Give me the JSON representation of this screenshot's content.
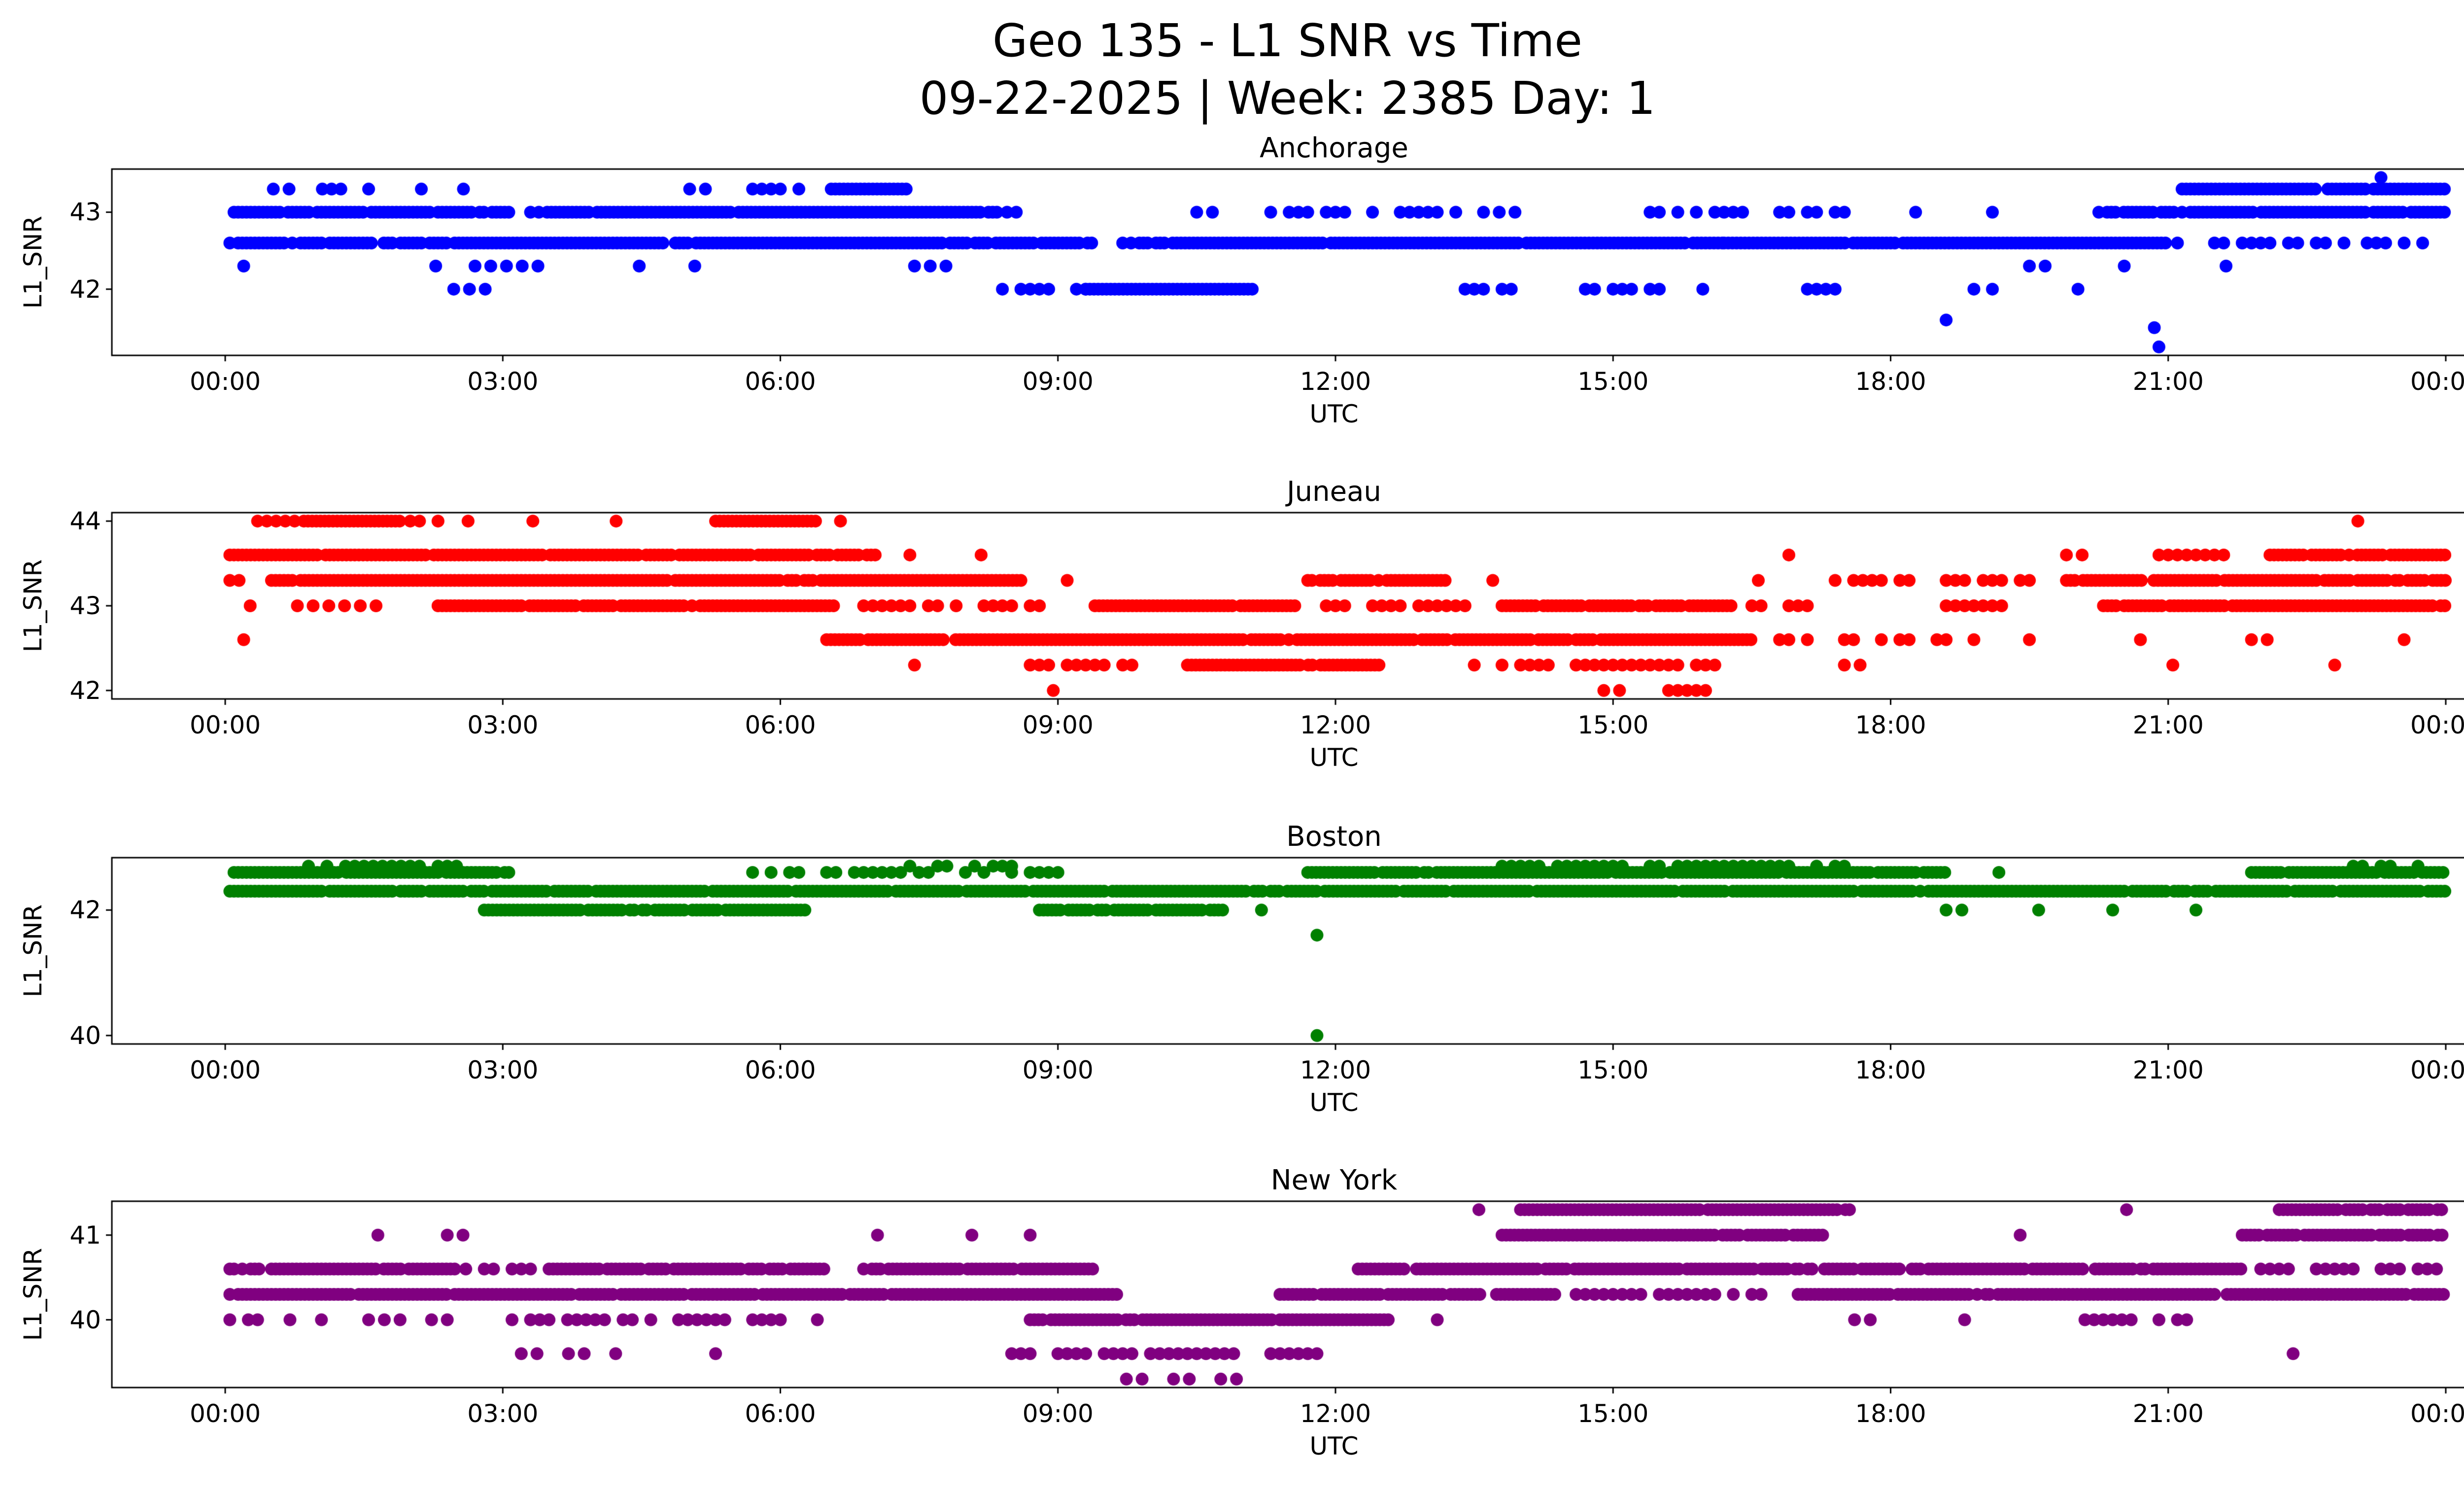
{
  "header": {
    "line1": "Geo 135 - L1 SNR vs Time",
    "line2": "09-22-2025 | Week: 2385 Day: 1"
  },
  "x_axis": {
    "label": "UTC",
    "range": [
      0,
      24
    ],
    "tick_times": [
      0,
      3,
      6,
      9,
      12,
      15,
      18,
      21,
      24
    ],
    "tick_labels": [
      "00:00",
      "03:00",
      "06:00",
      "09:00",
      "12:00",
      "15:00",
      "18:00",
      "21:00",
      "00:00"
    ]
  },
  "chart_data": [
    {
      "type": "scatter",
      "title": "Anchorage",
      "color": "#0000ff",
      "ylabel": "L1_SNR",
      "yticks": [
        42,
        43
      ],
      "bands": [
        {
          "snr": 43.45,
          "segments": [
            [
              23.3,
              23.3,
              "single"
            ]
          ]
        },
        {
          "snr": 43.3,
          "segments": [
            [
              0.35,
              0.95,
              "sparse"
            ],
            [
              1.05,
              1.65,
              "med"
            ],
            [
              1.95,
              2.15,
              "sparse"
            ],
            [
              2.5,
              2.65,
              "single"
            ],
            [
              4.85,
              5.35,
              "sparse"
            ],
            [
              5.6,
              6.35,
              "med"
            ],
            [
              6.55,
              7.4,
              "dense"
            ],
            [
              21.15,
              24,
              "dense"
            ]
          ]
        },
        {
          "snr": 43.0,
          "segments": [
            [
              0.05,
              3.1,
              "dense"
            ],
            [
              3.3,
              8.35,
              "dense"
            ],
            [
              8.45,
              8.75,
              "med"
            ],
            [
              10.5,
              10.95,
              "sparse"
            ],
            [
              11.3,
              12.4,
              "med"
            ],
            [
              12.6,
              13.35,
              "med"
            ],
            [
              13.6,
              14.1,
              "sparse"
            ],
            [
              15.4,
              16.45,
              "med"
            ],
            [
              16.8,
              17.6,
              "med"
            ],
            [
              18.1,
              18.55,
              "sparse"
            ],
            [
              19.0,
              19.2,
              "single"
            ],
            [
              20.25,
              24,
              "dense"
            ]
          ]
        },
        {
          "snr": 42.6,
          "segments": [
            [
              0.05,
              9.45,
              "dense"
            ],
            [
              9.7,
              16.2,
              "dense"
            ],
            [
              16.2,
              21.0,
              "dense"
            ],
            [
              21.0,
              23.0,
              "med"
            ],
            [
              23.15,
              24,
              "med"
            ]
          ]
        },
        {
          "snr": 42.3,
          "segments": [
            [
              0.2,
              0.5,
              "sparse"
            ],
            [
              2.2,
              2.35,
              "single"
            ],
            [
              2.7,
              3.6,
              "sparse"
            ],
            [
              4.4,
              4.55,
              "single"
            ],
            [
              5.0,
              5.15,
              "single"
            ],
            [
              7.45,
              7.9,
              "sparse"
            ],
            [
              19.5,
              19.85,
              "sparse"
            ],
            [
              20.45,
              20.6,
              "single"
            ],
            [
              21.55,
              21.7,
              "single"
            ]
          ]
        },
        {
          "snr": 42.0,
          "segments": [
            [
              2.3,
              2.9,
              "sparse"
            ],
            [
              8.4,
              9.3,
              "med"
            ],
            [
              9.3,
              11.1,
              "dense"
            ],
            [
              13.4,
              13.9,
              "med"
            ],
            [
              14.7,
              15.5,
              "med"
            ],
            [
              15.8,
              16.1,
              "sparse"
            ],
            [
              17.1,
              17.5,
              "med"
            ],
            [
              18.0,
              18.3,
              "sparse"
            ],
            [
              18.9,
              19.3,
              "med"
            ],
            [
              19.95,
              20.1,
              "single"
            ]
          ]
        },
        {
          "snr": 41.6,
          "segments": [
            [
              18.6,
              18.6,
              "single"
            ]
          ]
        },
        {
          "snr": 41.5,
          "segments": [
            [
              20.85,
              20.85,
              "single"
            ]
          ]
        },
        {
          "snr": 41.25,
          "segments": [
            [
              20.9,
              20.9,
              "single"
            ]
          ]
        }
      ]
    },
    {
      "type": "scatter",
      "title": "Juneau",
      "color": "#ff0000",
      "ylabel": "L1_SNR",
      "yticks": [
        42,
        43,
        44
      ],
      "bands": [
        {
          "snr": 44.0,
          "segments": [
            [
              0.35,
              0.75,
              "med"
            ],
            [
              0.85,
              1.9,
              "dense"
            ],
            [
              2.0,
              2.35,
              "med"
            ],
            [
              2.55,
              2.7,
              "single"
            ],
            [
              3.25,
              3.4,
              "single"
            ],
            [
              4.15,
              4.3,
              "single"
            ],
            [
              5.3,
              6.4,
              "dense"
            ],
            [
              6.6,
              6.7,
              "single"
            ],
            [
              23.0,
              23.1,
              "single"
            ]
          ]
        },
        {
          "snr": 43.6,
          "segments": [
            [
              0.05,
              7.05,
              "dense"
            ],
            [
              7.3,
              7.5,
              "single"
            ],
            [
              8.0,
              8.35,
              "sparse"
            ],
            [
              16.85,
              16.95,
              "single"
            ],
            [
              19.9,
              20.15,
              "sparse"
            ],
            [
              20.9,
              21.8,
              "med"
            ],
            [
              22.1,
              24,
              "dense"
            ]
          ]
        },
        {
          "snr": 43.3,
          "segments": [
            [
              0.05,
              0.2,
              "med"
            ],
            [
              0.5,
              8.6,
              "dense"
            ],
            [
              9.0,
              9.2,
              "single"
            ],
            [
              11.7,
              13.2,
              "dense"
            ],
            [
              13.6,
              13.8,
              "single"
            ],
            [
              16.4,
              16.7,
              "sparse"
            ],
            [
              17.4,
              18.3,
              "med"
            ],
            [
              18.6,
              19.6,
              "med"
            ],
            [
              19.9,
              24,
              "dense"
            ]
          ]
        },
        {
          "snr": 43.0,
          "segments": [
            [
              0.1,
              2.1,
              "sparse"
            ],
            [
              2.3,
              6.6,
              "dense"
            ],
            [
              6.8,
              8.9,
              "med"
            ],
            [
              9.4,
              11.6,
              "dense"
            ],
            [
              11.9,
              13.5,
              "med"
            ],
            [
              13.8,
              16.3,
              "dense"
            ],
            [
              16.5,
              17.3,
              "med"
            ],
            [
              18.3,
              19.3,
              "med"
            ],
            [
              20.3,
              24,
              "dense"
            ]
          ]
        },
        {
          "snr": 42.6,
          "segments": [
            [
              0.15,
              0.25,
              "single"
            ],
            [
              6.5,
              16.5,
              "dense"
            ],
            [
              16.5,
              19.0,
              "med"
            ],
            [
              19.4,
              19.6,
              "single"
            ],
            [
              20.6,
              20.8,
              "single"
            ],
            [
              21.9,
              22.1,
              "sparse"
            ],
            [
              22.9,
              23.2,
              "sparse"
            ],
            [
              23.5,
              23.6,
              "single"
            ]
          ]
        },
        {
          "snr": 42.3,
          "segments": [
            [
              7.4,
              7.5,
              "single"
            ],
            [
              8.7,
              9.8,
              "med"
            ],
            [
              10.4,
              12.5,
              "dense"
            ],
            [
              13.5,
              14.3,
              "med"
            ],
            [
              14.6,
              16.1,
              "med"
            ],
            [
              17.5,
              18.0,
              "sparse"
            ],
            [
              18.4,
              19.4,
              "sparse"
            ],
            [
              21.0,
              21.1,
              "single"
            ],
            [
              22.7,
              22.9,
              "single"
            ]
          ]
        },
        {
          "snr": 42.0,
          "segments": [
            [
              8.9,
              9.0,
              "single"
            ],
            [
              14.9,
              15.3,
              "sparse"
            ],
            [
              15.5,
              16.0,
              "med"
            ]
          ]
        }
      ]
    },
    {
      "type": "scatter",
      "title": "Boston",
      "color": "#008000",
      "ylabel": "L1_SNR",
      "yticks": [
        40,
        42
      ],
      "bands": [
        {
          "snr": 42.7,
          "segments": [
            [
              0.9,
              2.6,
              "med"
            ],
            [
              7.4,
              8.6,
              "med"
            ],
            [
              13.8,
              17.6,
              "med"
            ],
            [
              23.0,
              23.8,
              "med"
            ]
          ]
        },
        {
          "snr": 42.6,
          "segments": [
            [
              0.05,
              3.1,
              "dense"
            ],
            [
              5.7,
              6.3,
              "med"
            ],
            [
              6.5,
              9.0,
              "med"
            ],
            [
              11.7,
              18.6,
              "dense"
            ],
            [
              19.0,
              19.3,
              "sparse"
            ],
            [
              21.9,
              24,
              "dense"
            ]
          ]
        },
        {
          "snr": 42.3,
          "segments": [
            [
              0.05,
              24,
              "dense"
            ]
          ]
        },
        {
          "snr": 42.0,
          "segments": [
            [
              2.8,
              6.3,
              "dense"
            ],
            [
              8.8,
              10.8,
              "dense"
            ],
            [
              11.1,
              11.3,
              "single"
            ],
            [
              18.6,
              19.0,
              "sparse"
            ],
            [
              19.5,
              19.7,
              "single"
            ],
            [
              20.3,
              20.5,
              "single"
            ],
            [
              21.2,
              21.4,
              "single"
            ]
          ]
        },
        {
          "snr": 41.6,
          "segments": [
            [
              11.8,
              11.8,
              "single"
            ]
          ]
        },
        {
          "snr": 40.0,
          "segments": [
            [
              11.8,
              11.8,
              "single"
            ]
          ]
        }
      ]
    },
    {
      "type": "scatter",
      "title": "New York",
      "color": "#800080",
      "ylabel": "L1_SNR",
      "yticks": [
        40,
        41
      ],
      "bands": [
        {
          "snr": 41.3,
          "segments": [
            [
              13.5,
              13.6,
              "single"
            ],
            [
              14.0,
              17.6,
              "dense"
            ],
            [
              20.5,
              20.6,
              "single"
            ],
            [
              22.2,
              24,
              "dense"
            ]
          ]
        },
        {
          "snr": 41.0,
          "segments": [
            [
              1.6,
              1.7,
              "single"
            ],
            [
              2.4,
              2.6,
              "sparse"
            ],
            [
              7.0,
              7.1,
              "single"
            ],
            [
              7.9,
              8.2,
              "sparse"
            ],
            [
              8.6,
              8.8,
              "single"
            ],
            [
              13.8,
              17.3,
              "dense"
            ],
            [
              19.3,
              19.5,
              "single"
            ],
            [
              21.8,
              24,
              "dense"
            ]
          ]
        },
        {
          "snr": 40.6,
          "segments": [
            [
              0.05,
              2.5,
              "dense"
            ],
            [
              2.6,
              3.4,
              "med"
            ],
            [
              3.5,
              6.5,
              "dense"
            ],
            [
              6.9,
              9.4,
              "dense"
            ],
            [
              12.2,
              21.8,
              "dense"
            ],
            [
              21.9,
              24,
              "med"
            ]
          ]
        },
        {
          "snr": 40.3,
          "segments": [
            [
              0.05,
              9.7,
              "dense"
            ],
            [
              11.4,
              14.4,
              "dense"
            ],
            [
              14.5,
              16.8,
              "med"
            ],
            [
              17.0,
              24,
              "dense"
            ]
          ]
        },
        {
          "snr": 40.0,
          "segments": [
            [
              0.05,
              0.4,
              "med"
            ],
            [
              0.7,
              2.4,
              "sparse"
            ],
            [
              3.0,
              6.1,
              "med"
            ],
            [
              6.3,
              6.5,
              "single"
            ],
            [
              8.7,
              12.6,
              "dense"
            ],
            [
              13.0,
              13.2,
              "single"
            ],
            [
              17.1,
              18.9,
              "sparse"
            ],
            [
              20.1,
              21.4,
              "med"
            ]
          ]
        },
        {
          "snr": 39.6,
          "segments": [
            [
              3.2,
              4.3,
              "sparse"
            ],
            [
              5.2,
              5.4,
              "single"
            ],
            [
              8.5,
              11.8,
              "med"
            ],
            [
              22.3,
              22.4,
              "single"
            ]
          ]
        },
        {
          "snr": 39.3,
          "segments": [
            [
              9.4,
              11.5,
              "sparse"
            ]
          ]
        }
      ]
    }
  ]
}
